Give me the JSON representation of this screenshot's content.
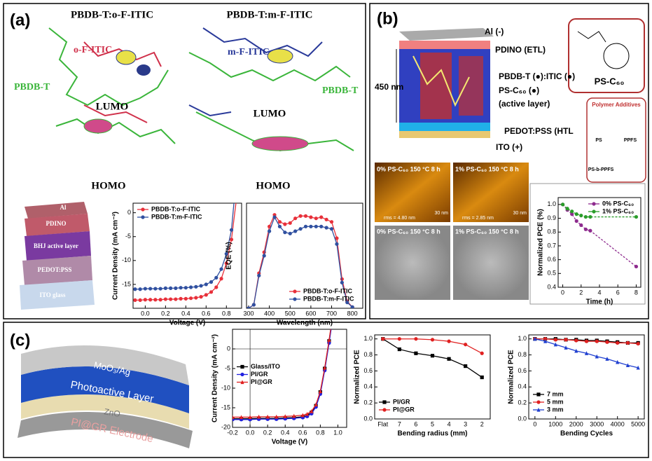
{
  "figure": {
    "panel_labels": [
      "(a)",
      "(b)",
      "(c)"
    ],
    "a": {
      "titles": [
        "PBDB-T:o-F-ITIC",
        "PBDB-T:m-F-ITIC"
      ],
      "acceptors": [
        "o-F-ITIC",
        "m-F-ITIC"
      ],
      "donor_labels": [
        "PBDB-T",
        "PBDB-T"
      ],
      "orbitals": [
        "LUMO",
        "LUMO",
        "HOMO",
        "HOMO"
      ],
      "layers": [
        "Al",
        "PDINO",
        "BHJ active layer",
        "PEDOT:PSS",
        "ITO glass"
      ]
    },
    "b": {
      "electrodes": [
        "Al (-)",
        "PDINO (ETL)",
        "PEDOT:PSS (HTL",
        "ITO (+)"
      ],
      "thickness": "450 nm",
      "active": [
        "PBDB-T (●):ITIC (●)",
        "PS-C₆₀ (●)",
        "(active layer)"
      ],
      "ps_c60": "PS-C₆₀",
      "additives_title": "Polymer Additives",
      "additives": [
        "PS",
        "PPFS",
        "PS-b-PPFS"
      ],
      "afm": [
        "0% PS-C₆₀ 150 °C 8 h",
        "1% PS-C₆₀ 150 °C 8 h"
      ],
      "rms": [
        "rms = 4.80 nm",
        "rms = 2.85 nm"
      ],
      "scale": [
        "30 nm",
        "30 nm"
      ],
      "tem": [
        "0% PS-C₆₀ 150 °C 8 h",
        "1% PS-C₆₀ 150 °C 8 h"
      ]
    },
    "c": {
      "layers": [
        "MoO₃/Ag",
        "Photoactive Layer",
        "ZnO",
        "PI@GR Electrode"
      ]
    }
  },
  "chart_data": [
    {
      "type": "line",
      "x_label": "Voltage (V)",
      "y_label": "Current Density (mA cm⁻²)",
      "legend": "upper left",
      "xlim": [
        -0.12,
        0.95
      ],
      "ylim": [
        -20,
        2
      ],
      "xticks": [
        {
          "value": 0,
          "label": "0.0"
        },
        0.2,
        0.4,
        0.6,
        0.8
      ],
      "yticks": [
        -15,
        -10,
        -5,
        0
      ],
      "x": [
        -0.1,
        -0.05,
        0,
        0.05,
        0.1,
        0.15,
        0.2,
        0.25,
        0.3,
        0.35,
        0.4,
        0.45,
        0.5,
        0.55,
        0.6,
        0.65,
        0.7,
        0.75,
        0.8,
        0.85,
        0.9
      ],
      "series": [
        {
          "name": "PBDB-T:o-F-ITIC",
          "color": "#e8303a",
          "marker": "circle",
          "values": [
            -18.3,
            -18.3,
            -18.2,
            -18.2,
            -18.2,
            -18.2,
            -18.1,
            -18.1,
            -18.1,
            -18.0,
            -18.0,
            -17.9,
            -17.8,
            -17.6,
            -17.2,
            -16.6,
            -15.6,
            -13.8,
            -10.6,
            -5.6,
            3
          ]
        },
        {
          "name": "PBDB-T:m-F-ITIC",
          "color": "#3050a0",
          "marker": "circle",
          "values": [
            -16.0,
            -16.0,
            -15.9,
            -15.9,
            -15.9,
            -15.9,
            -15.8,
            -15.8,
            -15.8,
            -15.7,
            -15.7,
            -15.6,
            -15.5,
            -15.3,
            -15.0,
            -14.5,
            -13.6,
            -11.8,
            -8.6,
            -3.6,
            8
          ]
        }
      ]
    },
    {
      "type": "line",
      "x_label": "Wavelength (nm)",
      "y_label": "EQE (%)",
      "legend": "lower right",
      "xlim": [
        290,
        850
      ],
      "ylim": [
        0,
        90
      ],
      "xticks": [
        300,
        400,
        500,
        600,
        700,
        800
      ],
      "x": [
        300,
        325,
        350,
        375,
        400,
        425,
        450,
        475,
        500,
        525,
        550,
        575,
        600,
        625,
        650,
        675,
        700,
        725,
        750,
        775,
        800
      ],
      "series": [
        {
          "name": "PBDB-T:o-F-ITIC",
          "color": "#e8303a",
          "marker": "circle",
          "values": [
            0,
            3,
            30,
            48,
            70,
            80,
            74,
            72,
            73,
            77,
            79,
            79,
            78,
            77,
            78,
            76,
            74,
            60,
            25,
            6,
            1
          ]
        },
        {
          "name": "PBDB-T:m-F-ITIC",
          "color": "#3050a0",
          "marker": "circle",
          "values": [
            0,
            3,
            28,
            45,
            66,
            78,
            70,
            65,
            64,
            66,
            68,
            70,
            70,
            70,
            70,
            69,
            68,
            55,
            22,
            5,
            1
          ]
        }
      ]
    },
    {
      "type": "line",
      "x_label": "Time (h)",
      "y_label": "Normalized PCE (%)",
      "legend": "upper right",
      "xlim": [
        -0.5,
        8.5
      ],
      "ylim": [
        0.4,
        1.05
      ],
      "xticks": [
        0,
        2,
        4,
        6,
        8
      ],
      "yticks": [
        0.4,
        0.5,
        0.6,
        0.7,
        0.8,
        0.9,
        {
          "value": 1,
          "label": "1.0"
        }
      ],
      "x": [
        0,
        0.5,
        1,
        1.5,
        2,
        2.5,
        3,
        8
      ],
      "series": [
        {
          "name": "0% PS-C₆₀",
          "color": "#8e2b8e",
          "marker": "circle",
          "dashed": true,
          "values": [
            1.0,
            0.96,
            0.93,
            0.88,
            0.85,
            0.82,
            0.81,
            0.55
          ]
        },
        {
          "name": "1% PS-C₆₀",
          "color": "#2a9d2a",
          "marker": "circle",
          "dashed": true,
          "values": [
            1.0,
            0.97,
            0.95,
            0.93,
            0.92,
            0.91,
            0.91,
            0.91
          ]
        }
      ]
    },
    {
      "type": "line",
      "x_label": "Voltage (V)",
      "y_label": "Current Density (mA cm⁻²)",
      "legend": "center left",
      "zero_lines": true,
      "xlim": [
        -0.2,
        1.1
      ],
      "ylim": [
        -20,
        5
      ],
      "xticks": [
        -0.2,
        {
          "value": 0,
          "label": "0.0"
        },
        0.2,
        0.4,
        0.6,
        0.8,
        {
          "value": 1,
          "label": "1.0"
        }
      ],
      "yticks": [
        -20,
        -15,
        -10,
        -5,
        0
      ],
      "x": [
        -0.2,
        -0.1,
        0,
        0.1,
        0.2,
        0.3,
        0.4,
        0.5,
        0.6,
        0.65,
        0.7,
        0.75,
        0.8,
        0.85,
        0.9,
        0.95
      ],
      "series": [
        {
          "name": "Glass/ITO",
          "color": "#000000",
          "marker": "square",
          "values": [
            -17.8,
            -17.8,
            -17.8,
            -17.7,
            -17.7,
            -17.7,
            -17.6,
            -17.5,
            -17.3,
            -17.0,
            -16.2,
            -14.5,
            -11,
            -5,
            2,
            10
          ]
        },
        {
          "name": "PI/GR",
          "color": "#2020e0",
          "marker": "circle",
          "values": [
            -18,
            -18,
            -18,
            -17.9,
            -17.9,
            -17.9,
            -17.8,
            -17.7,
            -17.5,
            -17.2,
            -16.5,
            -14.8,
            -11.5,
            -5.5,
            1.5,
            9
          ]
        },
        {
          "name": "PI@GR",
          "color": "#e02020",
          "marker": "triangle",
          "values": [
            -17.4,
            -17.4,
            -17.4,
            -17.3,
            -17.3,
            -17.3,
            -17.2,
            -17.1,
            -16.9,
            -16.6,
            -15.9,
            -14.2,
            -10.8,
            -4.8,
            2.3,
            10
          ]
        }
      ]
    },
    {
      "type": "line",
      "x_label": "Bending radius (mm)",
      "y_label": "Normalized PCE",
      "legend": "lower left",
      "categories": [
        "Flat",
        "7",
        "6",
        "5",
        "4",
        "3",
        "2"
      ],
      "ylim": [
        0,
        1.05
      ],
      "yticks": [
        {
          "value": 0,
          "label": "0.0"
        },
        0.2,
        0.4,
        0.6,
        0.8,
        {
          "value": 1,
          "label": "1.0"
        }
      ],
      "series": [
        {
          "name": "PI/GR",
          "color": "#000000",
          "marker": "square",
          "values": [
            1.0,
            0.87,
            0.82,
            0.79,
            0.75,
            0.66,
            0.52
          ]
        },
        {
          "name": "PI@GR",
          "color": "#e02020",
          "marker": "circle",
          "values": [
            1.0,
            1.0,
            1.0,
            0.99,
            0.97,
            0.93,
            0.82
          ]
        }
      ]
    },
    {
      "type": "line",
      "x_label": "Bending Cycles",
      "y_label": "Normalized PCE",
      "legend": "lower left",
      "xlim": [
        -300,
        5300
      ],
      "ylim": [
        0,
        1.05
      ],
      "xticks": [
        0,
        1000,
        2000,
        3000,
        4000,
        5000
      ],
      "yticks": [
        {
          "value": 0,
          "label": "0.0"
        },
        0.2,
        0.4,
        0.6,
        0.8,
        {
          "value": 1,
          "label": "1.0"
        }
      ],
      "x": [
        0,
        500,
        1000,
        1500,
        2000,
        2500,
        3000,
        3500,
        4000,
        4500,
        5000
      ],
      "series": [
        {
          "name": "7 mm",
          "color": "#000000",
          "marker": "square",
          "values": [
            1,
            1,
            1,
            0.99,
            0.99,
            0.98,
            0.98,
            0.97,
            0.96,
            0.95,
            0.95
          ]
        },
        {
          "name": "5 mm",
          "color": "#e02020",
          "marker": "circle",
          "values": [
            1,
            1,
            0.99,
            0.99,
            0.98,
            0.97,
            0.97,
            0.96,
            0.95,
            0.95,
            0.94
          ]
        },
        {
          "name": "3 mm",
          "color": "#2040d0",
          "marker": "triangle",
          "values": [
            1.0,
            0.97,
            0.93,
            0.89,
            0.85,
            0.82,
            0.78,
            0.75,
            0.71,
            0.67,
            0.64
          ]
        }
      ]
    }
  ]
}
